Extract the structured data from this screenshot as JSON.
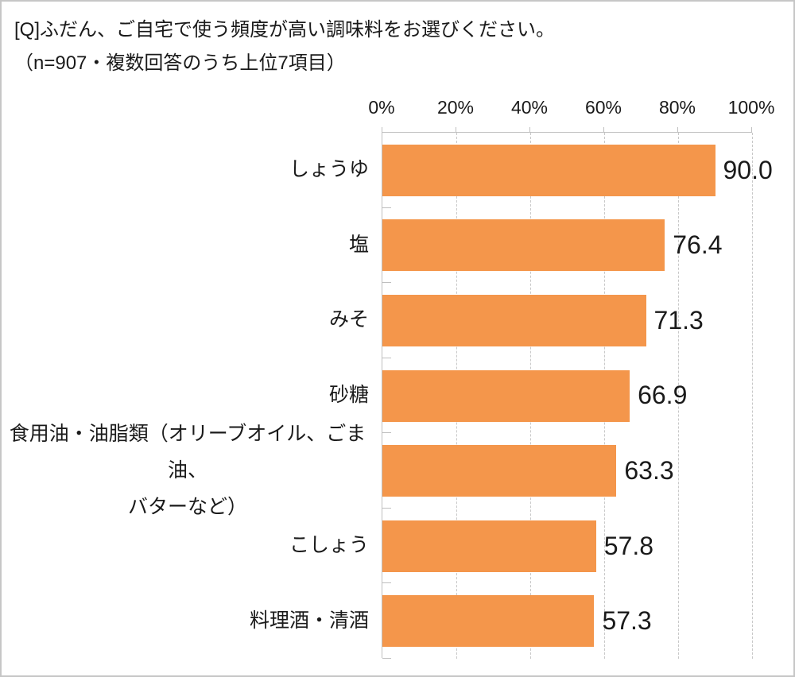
{
  "title": "[Q]ふだん、ご自宅で使う頻度が高い調味料をお選びください。",
  "subtitle": "（n=907・複数回答のうち上位7項目）",
  "chart_data": {
    "type": "bar",
    "orientation": "horizontal",
    "title": "[Q]ふだん、ご自宅で使う頻度が高い調味料をお選びください。",
    "subtitle": "（n=907・複数回答のうち上位7項目）",
    "sample_note": "n=907",
    "categories": [
      "しょうゆ",
      "塩",
      "みそ",
      "砂糖",
      "食用油・油脂類（オリーブオイル、ごま油、\nバターなど）",
      "こしょう",
      "料理酒・清酒"
    ],
    "values": [
      90.0,
      76.4,
      71.3,
      66.9,
      63.3,
      57.8,
      57.3
    ],
    "value_labels": [
      "90.0",
      "76.4",
      "71.3",
      "66.9",
      "63.3",
      "57.8",
      "57.3"
    ],
    "xlim": [
      0,
      100
    ],
    "x_ticks": [
      "0%",
      "20%",
      "40%",
      "60%",
      "80%",
      "100%"
    ],
    "grid": "vertical-dashed",
    "legend": "none",
    "bar_color": "#F4964B",
    "axis_color": "#BFBFBF",
    "gridline_color": "#C8C8C8",
    "text_color": "#1A1A1A"
  }
}
